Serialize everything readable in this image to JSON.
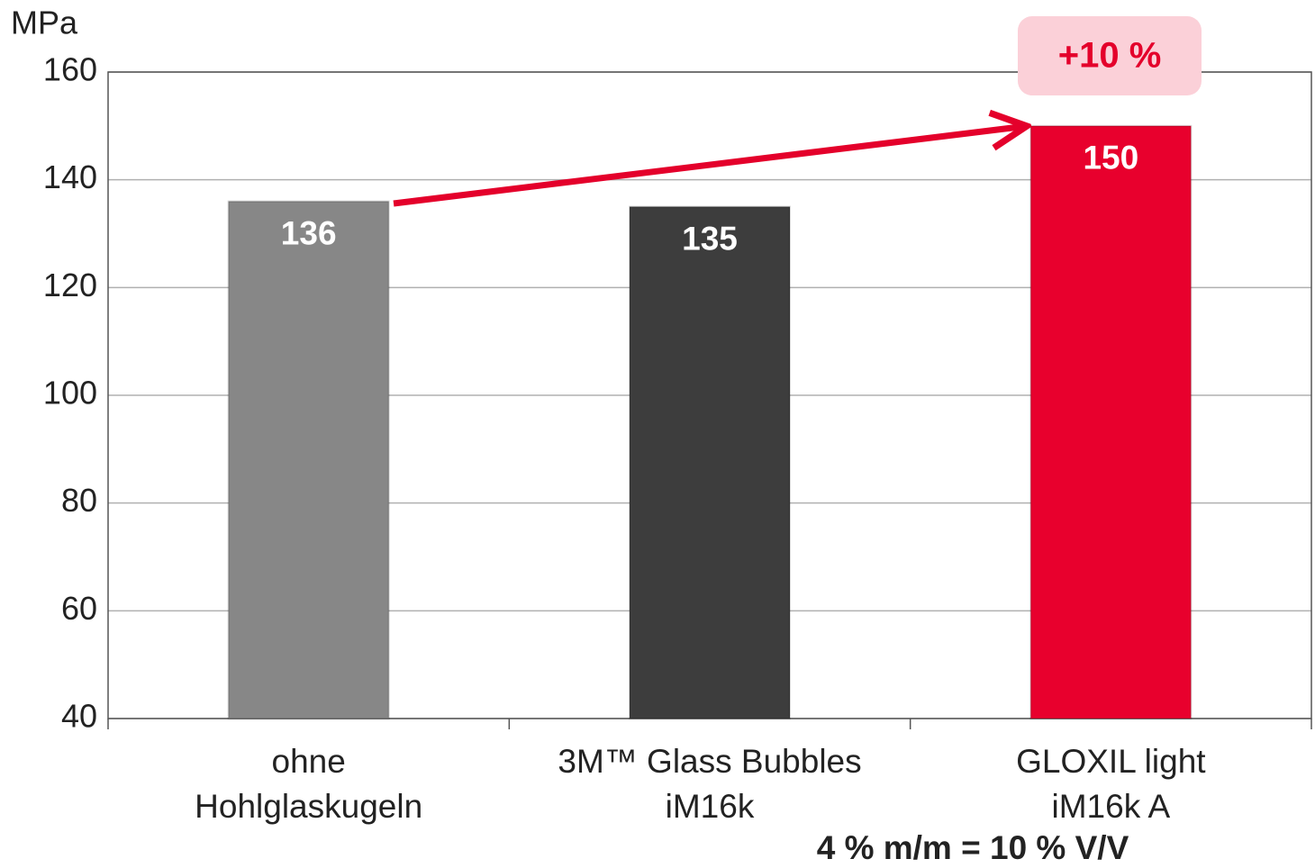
{
  "chart_data": {
    "type": "bar",
    "y_label": "MPa",
    "categories": [
      "ohne\nHohlglaskugeln",
      "3M™ Glass Bubbles\niM16k",
      "GLOXIL light\niM16k A"
    ],
    "values": [
      136,
      135,
      150
    ],
    "colors": [
      "#878787",
      "#3d3d3d",
      "#e8002d"
    ],
    "ylim": [
      40,
      160
    ],
    "yticks": [
      40,
      60,
      80,
      100,
      120,
      140,
      160
    ],
    "grid": true,
    "annotations": [
      "+10 %",
      "4 % m/m = 10 % V/V"
    ]
  }
}
